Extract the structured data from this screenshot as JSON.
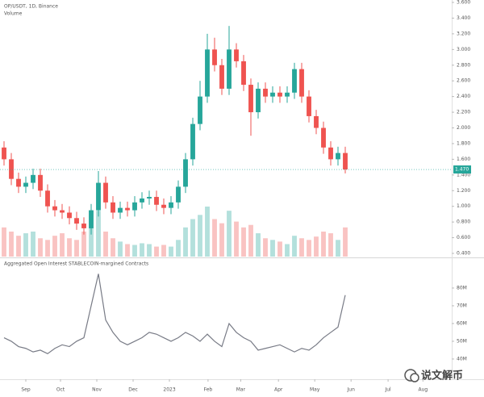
{
  "chart_data": [
    {
      "type": "candlestick",
      "title": "OP/USDT, 1D, Binance",
      "volume_title": "Volume",
      "up_color": "#26a69a",
      "down_color": "#ef5350",
      "xlim": [
        -0.556,
        61.667
      ],
      "ylim": [
        0.359,
        3.631
      ],
      "yticks": [
        {
          "value": 0.4,
          "label": "0.400"
        },
        {
          "value": 0.6,
          "label": "0.600"
        },
        {
          "value": 0.8,
          "label": "0.800"
        },
        {
          "value": 1.0,
          "label": "1.000"
        },
        {
          "value": 1.2,
          "label": "1.200"
        },
        {
          "value": 1.4,
          "label": "1.400"
        },
        {
          "value": 1.6,
          "label": "1.600"
        },
        {
          "value": 1.8,
          "label": "1.800"
        },
        {
          "value": 2.0,
          "label": "2.000"
        },
        {
          "value": 2.2,
          "label": "2.200"
        },
        {
          "value": 2.4,
          "label": "2.400"
        },
        {
          "value": 2.6,
          "label": "2.600"
        },
        {
          "value": 2.8,
          "label": "2.800"
        },
        {
          "value": 3.0,
          "label": "3.000"
        },
        {
          "value": 3.2,
          "label": "3.200"
        },
        {
          "value": 3.4,
          "label": "3.400"
        },
        {
          "value": 3.6,
          "label": "3.600"
        }
      ],
      "last_price": {
        "value": 1.47,
        "label": "1.470"
      },
      "open": [
        1.75,
        1.6,
        1.35,
        1.25,
        1.3,
        1.4,
        1.2,
        1.0,
        0.95,
        0.92,
        0.85,
        0.78,
        0.72,
        0.95,
        1.3,
        1.05,
        0.92,
        0.98,
        0.95,
        1.05,
        1.1,
        1.12,
        1.02,
        0.98,
        1.05,
        1.25,
        1.6,
        2.05,
        2.4,
        3.0,
        2.8,
        2.5,
        3.0,
        2.85,
        2.55,
        2.2,
        2.5,
        2.4,
        2.45,
        2.4,
        2.45,
        2.75,
        2.4,
        2.15,
        2.0,
        1.75,
        1.6,
        1.68
      ],
      "high": [
        1.83,
        1.68,
        1.43,
        1.38,
        1.48,
        1.48,
        1.28,
        1.08,
        1.03,
        1.0,
        0.93,
        0.86,
        1.03,
        1.45,
        1.38,
        1.13,
        1.06,
        1.06,
        1.13,
        1.18,
        1.2,
        1.2,
        1.1,
        1.13,
        1.33,
        1.68,
        2.13,
        2.6,
        3.2,
        3.15,
        2.88,
        3.3,
        3.08,
        2.93,
        2.63,
        2.58,
        2.58,
        2.53,
        2.53,
        2.53,
        2.83,
        2.83,
        2.48,
        2.23,
        2.08,
        1.83,
        1.76,
        1.76
      ],
      "low": [
        1.52,
        1.27,
        1.17,
        1.17,
        1.22,
        1.12,
        0.92,
        0.87,
        0.84,
        0.77,
        0.7,
        0.64,
        0.64,
        0.87,
        0.97,
        0.84,
        0.84,
        0.87,
        0.87,
        0.97,
        1.02,
        0.94,
        0.9,
        0.9,
        0.97,
        1.17,
        1.52,
        1.97,
        2.32,
        2.72,
        2.42,
        2.42,
        2.77,
        2.47,
        1.9,
        2.12,
        2.32,
        2.32,
        2.32,
        2.32,
        2.37,
        2.32,
        2.07,
        1.92,
        1.67,
        1.52,
        1.52,
        1.42
      ],
      "close": [
        1.6,
        1.35,
        1.25,
        1.3,
        1.4,
        1.2,
        1.0,
        0.95,
        0.92,
        0.85,
        0.78,
        0.72,
        0.95,
        1.3,
        1.05,
        0.92,
        0.98,
        0.95,
        1.05,
        1.1,
        1.12,
        1.02,
        0.98,
        1.05,
        1.25,
        1.6,
        2.05,
        2.4,
        3.0,
        2.8,
        2.5,
        3.0,
        2.85,
        2.55,
        2.2,
        2.5,
        2.4,
        2.45,
        2.4,
        2.45,
        2.75,
        2.4,
        2.15,
        2.0,
        1.75,
        1.6,
        1.68,
        1.47
      ],
      "volume": [
        35,
        30,
        25,
        28,
        30,
        22,
        20,
        25,
        28,
        22,
        20,
        30,
        35,
        55,
        30,
        22,
        18,
        15,
        14,
        16,
        15,
        12,
        14,
        12,
        20,
        35,
        45,
        50,
        60,
        45,
        40,
        55,
        42,
        35,
        38,
        28,
        22,
        20,
        18,
        15,
        25,
        22,
        20,
        24,
        30,
        28,
        20,
        35
      ]
    },
    {
      "type": "line",
      "title": "Aggregated Open Interest STABLECOIN-margined Contracts",
      "color": "#787b86",
      "xlim": [
        -0.556,
        61.667
      ],
      "ylim": [
        28600000,
        96800000
      ],
      "yticks": [
        {
          "value": 40000000,
          "label": "40M"
        },
        {
          "value": 50000000,
          "label": "50M"
        },
        {
          "value": 60000000,
          "label": "60M"
        },
        {
          "value": 70000000,
          "label": "70M"
        },
        {
          "value": 80000000,
          "label": "80M"
        }
      ],
      "xticks": [
        {
          "value": 3,
          "label": "Sep"
        },
        {
          "value": 7.78,
          "label": "Oct"
        },
        {
          "value": 12.78,
          "label": "Nov"
        },
        {
          "value": 17.78,
          "label": "Dec"
        },
        {
          "value": 22.78,
          "label": "2023"
        },
        {
          "value": 28.1,
          "label": "Feb"
        },
        {
          "value": 32.6,
          "label": "Mar"
        },
        {
          "value": 37.8,
          "label": "Apr"
        },
        {
          "value": 42.8,
          "label": "May"
        },
        {
          "value": 47.8,
          "label": "Jun"
        },
        {
          "value": 52.9,
          "label": "Jul"
        },
        {
          "value": 57.7,
          "label": "Aug"
        }
      ],
      "values": [
        52000000,
        50000000,
        47000000,
        46000000,
        44000000,
        45000000,
        43000000,
        46000000,
        48000000,
        47000000,
        50000000,
        52000000,
        70000000,
        88000000,
        62000000,
        55000000,
        50000000,
        48000000,
        50000000,
        52000000,
        55000000,
        54000000,
        52000000,
        50000000,
        52000000,
        55000000,
        53000000,
        50000000,
        54000000,
        50000000,
        47000000,
        60000000,
        55000000,
        52000000,
        50000000,
        45000000,
        46000000,
        47000000,
        48000000,
        46000000,
        44000000,
        46000000,
        45000000,
        48000000,
        52000000,
        55000000,
        58000000,
        76000000
      ]
    }
  ],
  "watermark": "说文解币"
}
